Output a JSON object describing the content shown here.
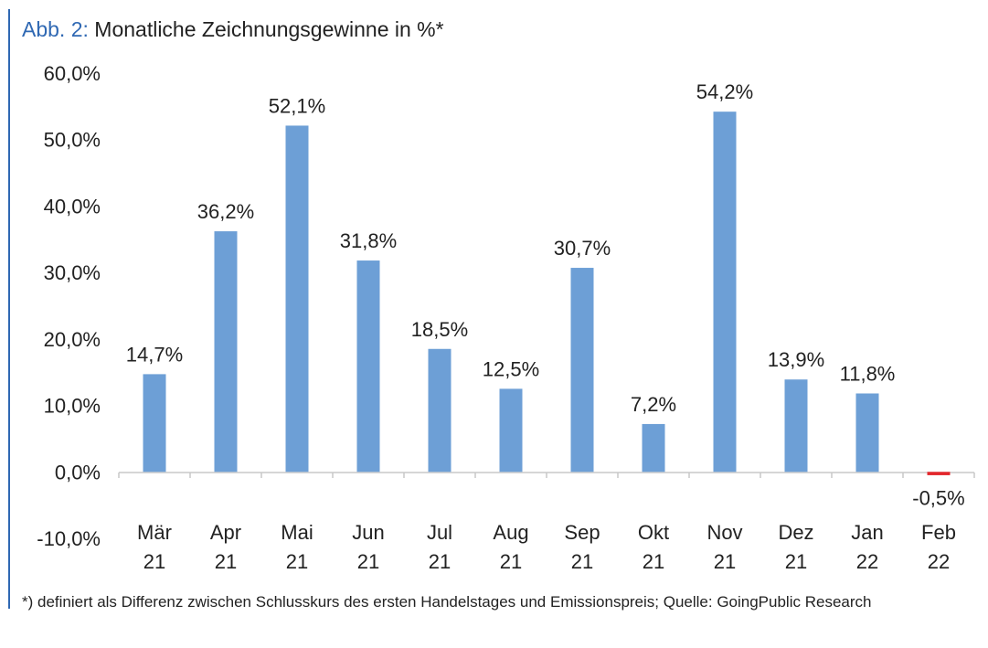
{
  "title": {
    "prefix": "Abb. 2:",
    "text": "Monatliche Zeichnungsgewinne in %*"
  },
  "footnote": "*) definiert als Differenz zwischen Schlusskurs des ersten Handelstages und Emissionspreis; Quelle: GoingPublic Research",
  "colors": {
    "bar_positive": "#6d9fd6",
    "bar_negative": "#e3262b",
    "title_accent": "#2f68b3",
    "axis": "#c9c9c9",
    "text": "#222222"
  },
  "chart_data": {
    "type": "bar",
    "categories": [
      "Mär 21",
      "Apr 21",
      "Mai 21",
      "Jun 21",
      "Jul 21",
      "Aug 21",
      "Sep 21",
      "Okt 21",
      "Nov 21",
      "Dez 21",
      "Jan 22",
      "Feb 22"
    ],
    "category_lines": [
      [
        "Mär",
        "21"
      ],
      [
        "Apr",
        "21"
      ],
      [
        "Mai",
        "21"
      ],
      [
        "Jun",
        "21"
      ],
      [
        "Jul",
        "21"
      ],
      [
        "Aug",
        "21"
      ],
      [
        "Sep",
        "21"
      ],
      [
        "Okt",
        "21"
      ],
      [
        "Nov",
        "21"
      ],
      [
        "Dez",
        "21"
      ],
      [
        "Jan",
        "22"
      ],
      [
        "Feb",
        "22"
      ]
    ],
    "values": [
      14.7,
      36.2,
      52.1,
      31.8,
      18.5,
      12.5,
      30.7,
      7.2,
      54.2,
      13.9,
      11.8,
      -0.5
    ],
    "data_labels": [
      "14,7%",
      "36,2%",
      "52,1%",
      "31,8%",
      "18,5%",
      "12,5%",
      "30,7%",
      "7,2%",
      "54,2%",
      "13,9%",
      "11,8%",
      "-0,5%"
    ],
    "y_ticks": [
      -10,
      0,
      10,
      20,
      30,
      40,
      50,
      60
    ],
    "y_tick_labels": [
      "-10,0%",
      "0,0%",
      "10,0%",
      "20,0%",
      "30,0%",
      "40,0%",
      "50,0%",
      "60,0%"
    ],
    "ylim": [
      -10,
      60
    ],
    "xlabel": "",
    "ylabel": "",
    "grid": false,
    "legend": "none"
  }
}
